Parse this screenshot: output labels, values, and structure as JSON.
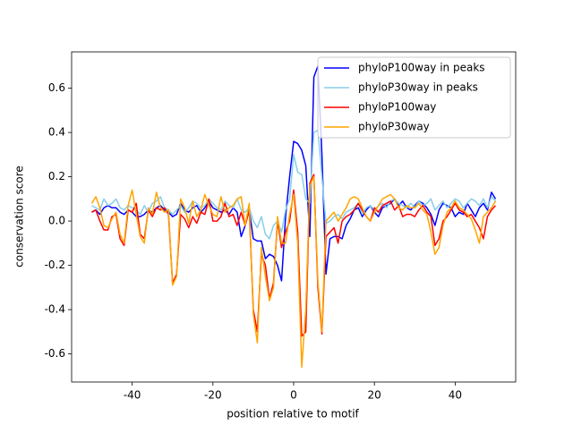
{
  "chart_data": {
    "type": "line",
    "xlabel": "position relative to motif",
    "ylabel": "conservation score",
    "x": [
      -50,
      -49,
      -48,
      -47,
      -46,
      -45,
      -44,
      -43,
      -42,
      -41,
      -40,
      -39,
      -38,
      -37,
      -36,
      -35,
      -34,
      -33,
      -32,
      -31,
      -30,
      -29,
      -28,
      -27,
      -26,
      -25,
      -24,
      -23,
      -22,
      -21,
      -20,
      -19,
      -18,
      -17,
      -16,
      -15,
      -14,
      -13,
      -12,
      -11,
      -10,
      -9,
      -8,
      -7,
      -6,
      -5,
      -4,
      -3,
      -2,
      -1,
      0,
      1,
      2,
      3,
      4,
      5,
      6,
      7,
      8,
      9,
      10,
      11,
      12,
      13,
      14,
      15,
      16,
      17,
      18,
      19,
      20,
      21,
      22,
      23,
      24,
      25,
      26,
      27,
      28,
      29,
      30,
      31,
      32,
      33,
      34,
      35,
      36,
      37,
      38,
      39,
      40,
      41,
      42,
      43,
      44,
      45,
      46,
      47,
      48,
      49,
      50
    ],
    "series": [
      {
        "name": "phyloP100way in peaks",
        "color": "#0000ff",
        "values": [
          0.04,
          0.05,
          0.03,
          0.06,
          0.07,
          0.06,
          0.06,
          0.04,
          0.03,
          0.05,
          0.04,
          0.02,
          0.02,
          0.03,
          0.05,
          0.04,
          0.06,
          0.07,
          0.05,
          0.04,
          0.02,
          0.03,
          0.08,
          0.05,
          0.04,
          0.06,
          0.07,
          0.04,
          0.06,
          0.09,
          0.06,
          0.05,
          0.04,
          0.05,
          0.03,
          0.06,
          0.04,
          -0.07,
          -0.02,
          0.05,
          -0.08,
          -0.09,
          -0.09,
          -0.17,
          -0.15,
          -0.16,
          -0.2,
          -0.27,
          0.02,
          0.2,
          0.36,
          0.35,
          0.32,
          0.25,
          -0.07,
          0.65,
          0.7,
          0.3,
          -0.24,
          -0.08,
          -0.07,
          -0.07,
          -0.08,
          -0.02,
          0.01,
          0.05,
          0.06,
          0.02,
          0.05,
          0.07,
          0.04,
          0.02,
          0.06,
          0.07,
          0.08,
          0.1,
          0.07,
          0.09,
          0.06,
          0.05,
          0.07,
          0.09,
          0.08,
          0.06,
          0.03,
          -0.02,
          0.05,
          0.08,
          0.07,
          0.06,
          0.02,
          0.04,
          0.03,
          0.08,
          0.05,
          0.02,
          0.06,
          0.08,
          0.05,
          0.13,
          0.1
        ]
      },
      {
        "name": "phyloP30way in peaks",
        "color": "#87ceeb",
        "values": [
          0.07,
          0.06,
          0.05,
          0.1,
          0.07,
          0.08,
          0.1,
          0.06,
          0.05,
          0.07,
          0.06,
          0.05,
          0.03,
          0.07,
          0.04,
          0.08,
          0.09,
          0.11,
          0.06,
          0.05,
          0.03,
          0.05,
          0.07,
          0.04,
          0.06,
          0.09,
          0.08,
          0.06,
          0.07,
          0.1,
          0.08,
          0.06,
          0.05,
          0.09,
          0.07,
          0.06,
          0.1,
          0.05,
          0.04,
          0.06,
          0.0,
          -0.03,
          0.02,
          -0.06,
          -0.08,
          -0.02,
          0.0,
          -0.05,
          0.05,
          0.1,
          0.3,
          0.22,
          0.21,
          0.1,
          0.08,
          0.4,
          0.41,
          0.2,
          -0.01,
          0.0,
          0.02,
          0.03,
          0.01,
          0.04,
          0.05,
          0.06,
          0.08,
          0.03,
          0.06,
          0.07,
          0.05,
          0.07,
          0.08,
          0.06,
          0.09,
          0.1,
          0.08,
          0.07,
          0.06,
          0.08,
          0.06,
          0.09,
          0.07,
          0.08,
          0.1,
          0.05,
          0.07,
          0.09,
          0.06,
          0.08,
          0.1,
          0.09,
          0.06,
          0.08,
          0.1,
          0.09,
          0.07,
          0.1,
          0.06,
          0.11,
          0.09
        ]
      },
      {
        "name": "phyloP100way",
        "color": "#ff0000",
        "values": [
          0.04,
          0.05,
          0.0,
          -0.04,
          -0.04,
          0.02,
          0.03,
          -0.08,
          -0.11,
          0.05,
          0.04,
          0.08,
          -0.06,
          -0.08,
          0.05,
          0.02,
          0.06,
          0.05,
          0.06,
          0.03,
          -0.28,
          -0.24,
          0.03,
          0.01,
          -0.03,
          0.02,
          -0.01,
          0.04,
          0.03,
          0.1,
          0.0,
          0.0,
          0.02,
          0.08,
          0.02,
          0.03,
          -0.02,
          0.04,
          -0.02,
          0.05,
          -0.4,
          -0.5,
          -0.15,
          -0.2,
          -0.35,
          -0.28,
          0.0,
          -0.12,
          -0.05,
          0.0,
          0.14,
          -0.05,
          -0.52,
          -0.5,
          0.17,
          0.21,
          -0.3,
          -0.51,
          -0.07,
          -0.05,
          -0.03,
          -0.1,
          0.0,
          0.02,
          0.03,
          0.05,
          0.08,
          0.05,
          0.02,
          0.0,
          0.06,
          0.04,
          0.07,
          0.08,
          0.09,
          0.05,
          0.07,
          0.02,
          0.03,
          0.03,
          0.02,
          0.05,
          0.07,
          0.04,
          0.02,
          -0.11,
          -0.08,
          0.0,
          0.02,
          0.05,
          0.08,
          0.05,
          0.04,
          0.02,
          0.03,
          0.0,
          -0.03,
          -0.08,
          0.02,
          0.05,
          0.07
        ]
      },
      {
        "name": "phyloP30way",
        "color": "#ffa500",
        "values": [
          0.08,
          0.11,
          0.06,
          -0.02,
          -0.03,
          0.01,
          0.04,
          -0.06,
          -0.1,
          0.07,
          0.14,
          0.03,
          -0.07,
          -0.1,
          0.06,
          0.03,
          0.13,
          0.06,
          0.04,
          0.05,
          -0.29,
          -0.25,
          0.1,
          0.06,
          -0.01,
          0.09,
          0.02,
          0.05,
          0.12,
          0.07,
          0.03,
          0.02,
          0.11,
          0.04,
          0.06,
          0.07,
          0.1,
          0.11,
          -0.02,
          0.08,
          -0.42,
          -0.55,
          -0.12,
          -0.25,
          -0.36,
          -0.3,
          0.02,
          -0.1,
          -0.1,
          0.03,
          0.12,
          -0.1,
          -0.66,
          -0.4,
          0.16,
          0.2,
          -0.27,
          -0.5,
          0.0,
          0.02,
          0.04,
          0.0,
          0.03,
          0.06,
          0.1,
          0.11,
          0.1,
          0.06,
          0.02,
          0.0,
          0.04,
          0.07,
          0.1,
          0.11,
          0.12,
          0.1,
          0.06,
          0.05,
          0.07,
          0.06,
          0.06,
          0.08,
          0.05,
          0.03,
          -0.05,
          -0.15,
          -0.12,
          -0.02,
          0.04,
          0.06,
          0.09,
          0.06,
          0.05,
          0.03,
          0.01,
          -0.04,
          -0.1,
          0.02,
          0.04,
          0.06,
          0.09
        ]
      }
    ],
    "xlim": [
      -55,
      55
    ],
    "xticks": [
      -40,
      -20,
      0,
      20,
      40
    ],
    "ylim": [
      -0.727,
      0.764
    ],
    "yticks": [
      -0.6,
      -0.4,
      -0.2,
      {
        "value": 0,
        "label": "0.0"
      },
      0.2,
      0.4,
      0.6
    ],
    "legend": "upper right",
    "grid": false
  }
}
